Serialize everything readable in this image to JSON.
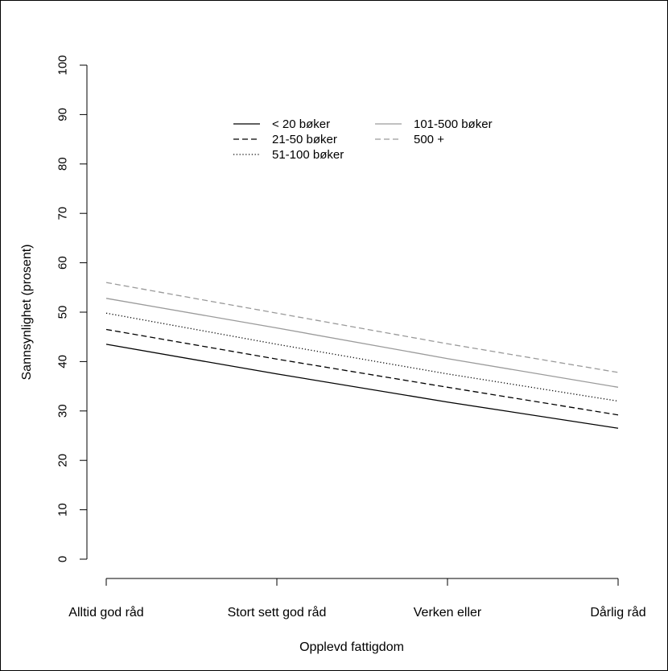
{
  "chart_data": {
    "type": "line",
    "xlabel": "Opplevd fattigdom",
    "ylabel": "Sannsynlighet (prosent)",
    "categories": [
      "Alltid god råd",
      "Stort sett god råd",
      "Verken eller",
      "Dårlig råd"
    ],
    "ylim": [
      0,
      100
    ],
    "yticks": [
      0,
      10,
      20,
      30,
      40,
      50,
      60,
      70,
      80,
      90,
      100
    ],
    "grid": false,
    "legend_position": "top-center",
    "series": [
      {
        "name": "< 20 bøker",
        "values": [
          43.5,
          37.5,
          31.8,
          26.5
        ],
        "color": "#000000",
        "dash": "solid"
      },
      {
        "name": "21-50 bøker",
        "values": [
          46.5,
          40.5,
          34.8,
          29.2
        ],
        "color": "#000000",
        "dash": "dashed"
      },
      {
        "name": "51-100 bøker",
        "values": [
          49.8,
          43.5,
          37.5,
          32.0
        ],
        "color": "#000000",
        "dash": "dotted"
      },
      {
        "name": "101-500 bøker",
        "values": [
          52.8,
          46.8,
          40.6,
          34.8
        ],
        "color": "#9a9a9a",
        "dash": "solid"
      },
      {
        "name": "500 +",
        "values": [
          56.0,
          49.8,
          43.6,
          37.8
        ],
        "color": "#9a9a9a",
        "dash": "dashed"
      }
    ]
  }
}
